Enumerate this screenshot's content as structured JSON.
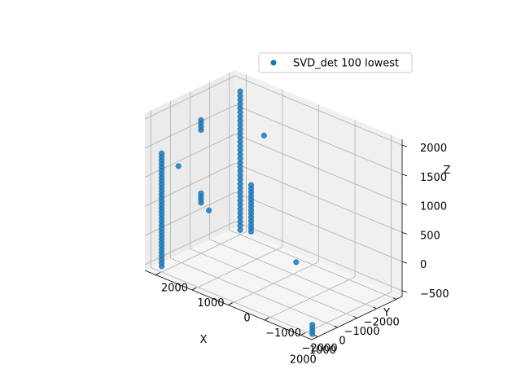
{
  "chart_data": {
    "type": "scatter3d",
    "title": "",
    "xlabel": "X",
    "ylabel": "Y",
    "zlabel": "Z",
    "legend": {
      "label": "SVD_det 100 lowest",
      "placement": "top-right"
    },
    "colors": {
      "point": "#1f77b4",
      "pane": "#f2f2f2",
      "grid": "#b0b0b0"
    },
    "grid": true,
    "xlim": [
      -2300,
      2300
    ],
    "ylim": [
      -2300,
      2300
    ],
    "zlim": [
      -600,
      2100
    ],
    "xticks": [
      -2000,
      -1000,
      0,
      1000,
      2000
    ],
    "yticks": [
      -2000,
      -1000,
      0,
      1000,
      2000
    ],
    "zticks": [
      -500,
      0,
      500,
      1000,
      1500,
      2000
    ],
    "xtick_labels": [
      "−2000",
      "−1000",
      "0",
      "1000",
      "2000"
    ],
    "ytick_labels": [
      "−2000",
      "−1000",
      "0",
      "1000",
      "2000"
    ],
    "ztick_labels": [
      "−500",
      "0",
      "500",
      "1000",
      "1500",
      "2000"
    ],
    "columns": [
      {
        "x": -2000,
        "y": 2000,
        "z_from": -520,
        "z_to": 1860,
        "count": 34
      },
      {
        "x": -2000,
        "y": 1700,
        "z_from": -470,
        "z_to": 330,
        "count": 14
      },
      {
        "x": 2000,
        "y": 2000,
        "z_from": -500,
        "z_to": 1440,
        "count": 34
      },
      {
        "x": 0,
        "y": 2000,
        "z_from": 1520,
        "z_to": 1690,
        "count": 4
      },
      {
        "x": 0,
        "y": 2000,
        "z_from": 270,
        "z_to": 430,
        "count": 4
      },
      {
        "x": 1900,
        "y": -2100,
        "z_from": -620,
        "z_to": -460,
        "count": 4
      }
    ],
    "points": [
      {
        "x": -2100,
        "y": 1400,
        "z": 1240
      },
      {
        "x": 1700,
        "y": 1700,
        "z": 1250
      },
      {
        "x": -1150,
        "y": 0,
        "z": -420
      },
      {
        "x": 150,
        "y": 1700,
        "z": 240
      }
    ]
  }
}
